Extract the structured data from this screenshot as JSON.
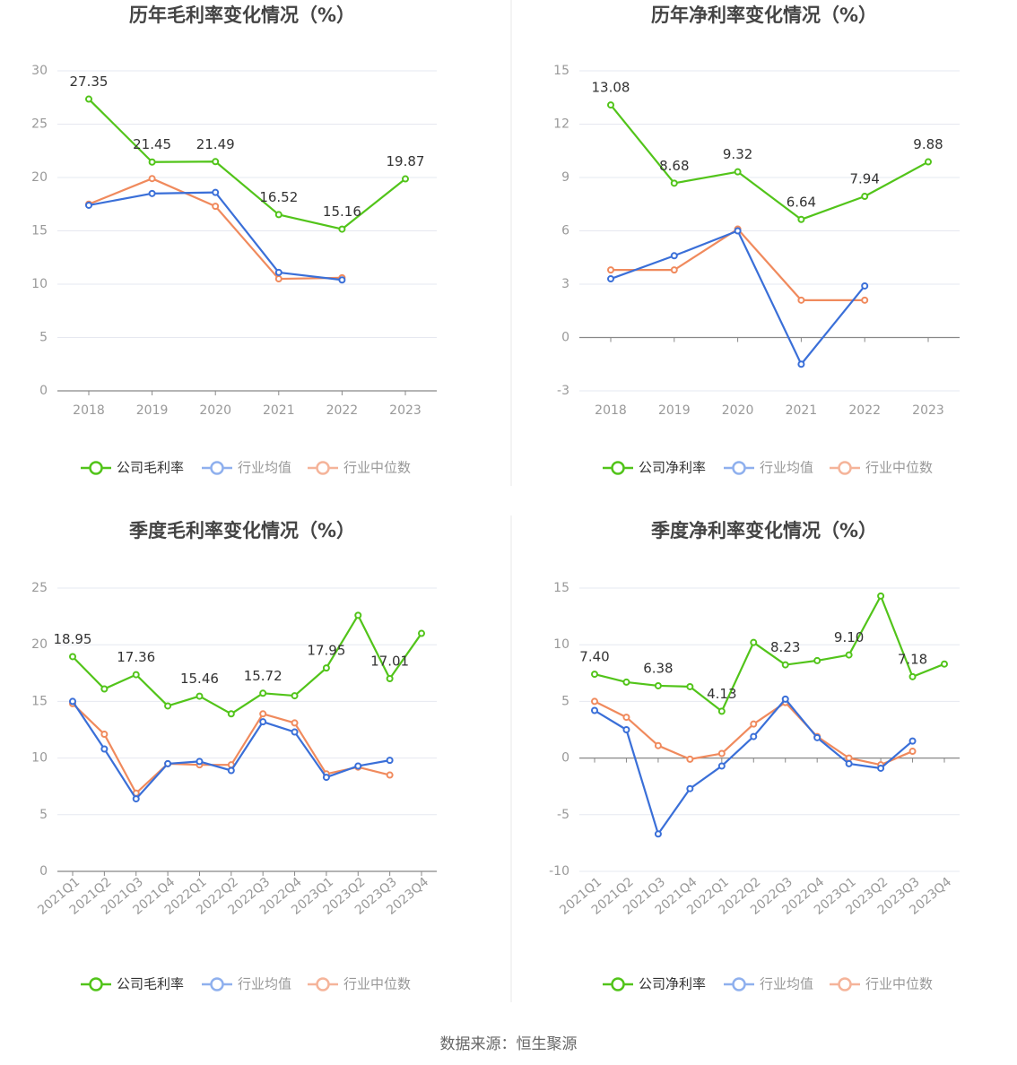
{
  "colors": {
    "company": "#52c41a",
    "avg": "#3a6fd8",
    "median": "#f08a5d",
    "grid": "#e6e8f0",
    "axis": "#888888",
    "tick": "#999999",
    "label": "#333333",
    "title": "#444444"
  },
  "legend": {
    "company_gross": "公司毛利率",
    "company_net": "公司净利率",
    "avg": "行业均值",
    "median": "行业中位数"
  },
  "footer": {
    "source": "数据来源：恒生聚源"
  },
  "chart_data": [
    {
      "type": "line",
      "title": "历年毛利率变化情况（%）",
      "categories": [
        "2018",
        "2019",
        "2020",
        "2021",
        "2022",
        "2023"
      ],
      "ylim": [
        0,
        30
      ],
      "yticks": [
        0,
        5,
        10,
        15,
        20,
        25,
        30
      ],
      "ytick_labels": [
        "0",
        "5",
        "10",
        "15",
        "20",
        "25",
        "30"
      ],
      "grid": true,
      "legend_position": "bottom",
      "series": [
        {
          "name": "公司毛利率",
          "key": "company",
          "values": [
            27.35,
            21.45,
            21.49,
            16.52,
            15.16,
            19.87
          ],
          "labels": [
            "27.35",
            "21.45",
            "21.49",
            "16.52",
            "15.16",
            "19.87"
          ]
        },
        {
          "name": "行业均值",
          "key": "avg",
          "values": [
            17.4,
            18.5,
            18.6,
            11.1,
            10.4,
            null
          ]
        },
        {
          "name": "行业中位数",
          "key": "median",
          "values": [
            17.5,
            19.9,
            17.3,
            10.5,
            10.6,
            null
          ]
        }
      ]
    },
    {
      "type": "line",
      "title": "历年净利率变化情况（%）",
      "categories": [
        "2018",
        "2019",
        "2020",
        "2021",
        "2022",
        "2023"
      ],
      "ylim": [
        -3,
        15
      ],
      "yticks": [
        -3,
        0,
        3,
        6,
        9,
        12,
        15
      ],
      "ytick_labels": [
        "-3",
        "0",
        "3",
        "6",
        "9",
        "12",
        "15"
      ],
      "grid": true,
      "legend_position": "bottom",
      "series": [
        {
          "name": "公司净利率",
          "key": "company",
          "values": [
            13.08,
            8.68,
            9.32,
            6.64,
            7.94,
            9.88
          ],
          "labels": [
            "13.08",
            "8.68",
            "9.32",
            "6.64",
            "7.94",
            "9.88"
          ]
        },
        {
          "name": "行业均值",
          "key": "avg",
          "values": [
            3.3,
            4.6,
            6.0,
            -1.5,
            2.9,
            null
          ]
        },
        {
          "name": "行业中位数",
          "key": "median",
          "values": [
            3.8,
            3.8,
            6.1,
            2.1,
            2.1,
            null
          ]
        }
      ]
    },
    {
      "type": "line",
      "title": "季度毛利率变化情况（%）",
      "categories": [
        "2021Q1",
        "2021Q2",
        "2021Q3",
        "2021Q4",
        "2022Q1",
        "2022Q2",
        "2022Q3",
        "2022Q4",
        "2023Q1",
        "2023Q2",
        "2023Q3",
        "2023Q4"
      ],
      "ylim": [
        0,
        25
      ],
      "yticks": [
        0,
        5,
        10,
        15,
        20,
        25
      ],
      "ytick_labels": [
        "0",
        "5",
        "10",
        "15",
        "20",
        "25"
      ],
      "grid": true,
      "legend_position": "bottom",
      "series": [
        {
          "name": "公司毛利率",
          "key": "company",
          "values": [
            18.95,
            16.1,
            17.36,
            14.6,
            15.46,
            13.9,
            15.72,
            15.5,
            17.95,
            22.6,
            17.01,
            21.0
          ],
          "labels": [
            "18.95",
            "",
            "17.36",
            "",
            "15.46",
            "",
            "15.72",
            "",
            "17.95",
            "",
            "17.01",
            ""
          ]
        },
        {
          "name": "行业均值",
          "key": "avg",
          "values": [
            15.0,
            10.8,
            6.4,
            9.5,
            9.7,
            8.9,
            13.2,
            12.3,
            8.3,
            9.3,
            9.8,
            null
          ]
        },
        {
          "name": "行业中位数",
          "key": "median",
          "values": [
            14.8,
            12.1,
            6.9,
            9.5,
            9.4,
            9.4,
            13.9,
            13.1,
            8.6,
            9.2,
            8.5,
            null
          ]
        }
      ]
    },
    {
      "type": "line",
      "title": "季度净利率变化情况（%）",
      "categories": [
        "2021Q1",
        "2021Q2",
        "2021Q3",
        "2021Q4",
        "2022Q1",
        "2022Q2",
        "2022Q3",
        "2022Q4",
        "2023Q1",
        "2023Q2",
        "2023Q3",
        "2023Q4"
      ],
      "ylim": [
        -10,
        15
      ],
      "yticks": [
        -10,
        -5,
        0,
        5,
        10,
        15
      ],
      "ytick_labels": [
        "-10",
        "-5",
        "0",
        "5",
        "10",
        "15"
      ],
      "grid": true,
      "legend_position": "bottom",
      "series": [
        {
          "name": "公司净利率",
          "key": "company",
          "values": [
            7.4,
            6.7,
            6.38,
            6.3,
            4.13,
            10.2,
            8.23,
            8.6,
            9.1,
            14.3,
            7.18,
            8.3
          ],
          "labels": [
            "7.40",
            "",
            "6.38",
            "",
            "4.13",
            "",
            "8.23",
            "",
            "9.10",
            "",
            "7.18",
            ""
          ]
        },
        {
          "name": "行业均值",
          "key": "avg",
          "values": [
            4.2,
            2.5,
            -6.7,
            -2.7,
            -0.7,
            1.9,
            5.2,
            1.8,
            -0.5,
            -0.9,
            1.5,
            null
          ]
        },
        {
          "name": "行业中位数",
          "key": "median",
          "values": [
            5.0,
            3.6,
            1.1,
            -0.1,
            0.4,
            3.0,
            4.9,
            1.9,
            0.0,
            -0.6,
            0.6,
            null
          ]
        }
      ]
    }
  ]
}
